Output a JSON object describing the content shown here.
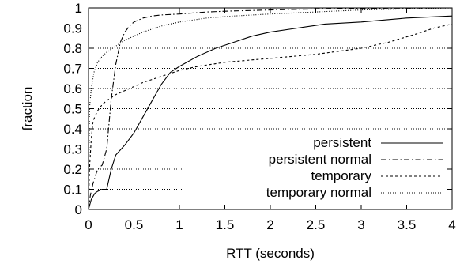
{
  "chart_data": {
    "type": "line",
    "xlabel": "RTT (seconds)",
    "ylabel": "fraction",
    "xlim": [
      0,
      4
    ],
    "ylim": [
      0,
      1
    ],
    "x_ticks": [
      "0",
      "0.5",
      "1",
      "1.5",
      "2",
      "2.5",
      "3",
      "3.5",
      "4"
    ],
    "y_ticks": [
      "0",
      "0.1",
      "0.2",
      "0.3",
      "0.4",
      "0.5",
      "0.6",
      "0.7",
      "0.8",
      "0.9",
      "1"
    ],
    "grid": "horizontal dotted",
    "legend_position": "bottom-right",
    "series": [
      {
        "name": "persistent",
        "dash": "solid",
        "x": [
          0,
          0.03,
          0.07,
          0.1,
          0.15,
          0.2,
          0.25,
          0.3,
          0.4,
          0.5,
          0.6,
          0.7,
          0.8,
          0.9,
          1.0,
          1.2,
          1.4,
          1.6,
          1.8,
          2.0,
          2.3,
          2.6,
          3.0,
          3.5,
          4.0
        ],
        "y": [
          0,
          0.05,
          0.08,
          0.09,
          0.1,
          0.1,
          0.2,
          0.27,
          0.32,
          0.38,
          0.46,
          0.54,
          0.62,
          0.68,
          0.71,
          0.76,
          0.8,
          0.83,
          0.86,
          0.88,
          0.9,
          0.92,
          0.93,
          0.95,
          0.96
        ]
      },
      {
        "name": "persistent normal",
        "dash": "dashdot",
        "x": [
          0,
          0.02,
          0.05,
          0.1,
          0.15,
          0.2,
          0.25,
          0.3,
          0.35,
          0.4,
          0.45,
          0.5,
          0.6,
          0.7,
          0.8,
          1.0,
          1.3,
          1.6,
          2.0,
          2.5,
          3.0,
          3.5,
          4.0
        ],
        "y": [
          0,
          0.07,
          0.13,
          0.2,
          0.22,
          0.3,
          0.55,
          0.72,
          0.83,
          0.88,
          0.91,
          0.93,
          0.95,
          0.96,
          0.965,
          0.97,
          0.98,
          0.985,
          0.99,
          0.995,
          0.998,
          0.999,
          1.0
        ]
      },
      {
        "name": "temporary",
        "dash": "dashed",
        "x": [
          0,
          0.01,
          0.03,
          0.05,
          0.1,
          0.15,
          0.2,
          0.3,
          0.4,
          0.5,
          0.6,
          0.8,
          1.0,
          1.2,
          1.5,
          2.0,
          2.5,
          3.0,
          3.3,
          3.6,
          3.8,
          4.0
        ],
        "y": [
          0,
          0.2,
          0.35,
          0.44,
          0.49,
          0.52,
          0.54,
          0.57,
          0.59,
          0.61,
          0.63,
          0.66,
          0.69,
          0.71,
          0.73,
          0.75,
          0.77,
          0.8,
          0.83,
          0.87,
          0.9,
          0.92
        ]
      },
      {
        "name": "temporary normal",
        "dash": "dotted",
        "x": [
          0,
          0.01,
          0.03,
          0.06,
          0.1,
          0.15,
          0.2,
          0.3,
          0.4,
          0.5,
          0.6,
          0.8,
          1.0,
          1.3,
          1.6,
          2.0,
          2.5,
          3.0,
          3.5,
          4.0
        ],
        "y": [
          0,
          0.5,
          0.6,
          0.68,
          0.73,
          0.76,
          0.78,
          0.81,
          0.84,
          0.86,
          0.88,
          0.91,
          0.93,
          0.95,
          0.96,
          0.97,
          0.98,
          0.99,
          0.995,
          1.0
        ]
      }
    ]
  }
}
